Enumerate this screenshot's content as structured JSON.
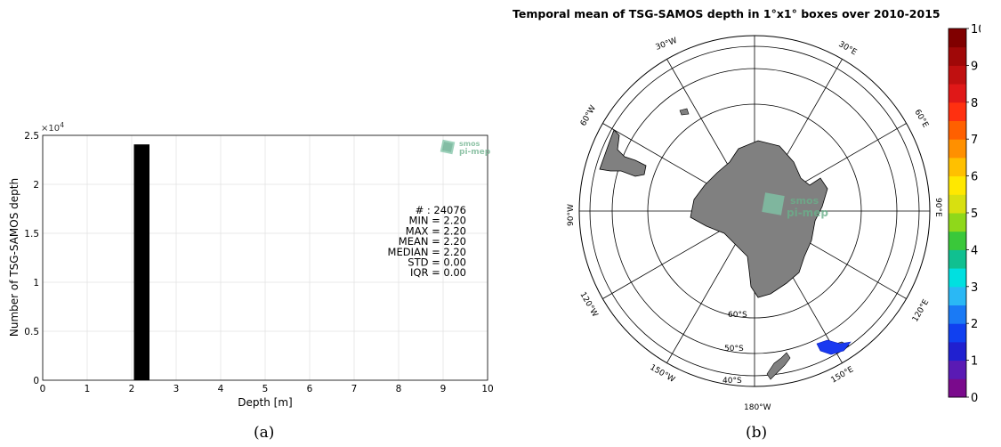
{
  "hist": {
    "chart_data": {
      "type": "bar",
      "xlabel": "Depth [m]",
      "ylabel": "Number of TSG-SAMOS depth",
      "y_exponent_label": "×10",
      "y_exponent_power": "4",
      "xlim": [
        0,
        10
      ],
      "ylim": [
        0,
        25000
      ],
      "x_ticks": [
        "0",
        "1",
        "2",
        "3",
        "4",
        "5",
        "6",
        "7",
        "8",
        "9",
        "10"
      ],
      "y_ticks": [
        "0",
        "0.5",
        "1",
        "1.5",
        "2",
        "2.5"
      ],
      "bars": [
        {
          "x_start": 2.05,
          "x_end": 2.4,
          "value": 24076
        }
      ],
      "grid": true
    },
    "stats": [
      "# : 24076",
      "MIN = 2.20",
      "MAX =  2.20",
      "MEAN = 2.20",
      "MEDIAN = 2.20",
      "STD = 0.00",
      "IQR = 0.00"
    ],
    "logo": {
      "line1": "smos",
      "line2": "pi-mep"
    },
    "caption": "(a)"
  },
  "map": {
    "title": "Temporal mean of TSG-SAMOS depth in 1°x1° boxes over 2010-2015",
    "longitude_labels": [
      "30°W",
      "30°E",
      "60°W",
      "60°E",
      "90°W",
      "90°E",
      "120°W",
      "120°E",
      "150°W",
      "150°E",
      "180°W"
    ],
    "latitude_labels": [
      "60°S",
      "50°S",
      "40°S"
    ],
    "logo": {
      "line1": "smos",
      "line2": "pi-mep"
    },
    "colorbar": {
      "ticks": [
        "0",
        "1",
        "2",
        "3",
        "4",
        "5",
        "6",
        "7",
        "8",
        "9",
        "10"
      ],
      "colors": [
        "#7a0a8c",
        "#5a1ab4",
        "#2020d0",
        "#1040f0",
        "#1a7af5",
        "#2ab8f5",
        "#00e0e0",
        "#10c090",
        "#3ac83a",
        "#8fd81a",
        "#d8e010",
        "#ffe800",
        "#ffc000",
        "#ff9000",
        "#ff6000",
        "#ff3010",
        "#e01818",
        "#c01010",
        "#a00808",
        "#800000"
      ]
    },
    "data_patch_color": "#1a3af0",
    "caption": "(b)"
  }
}
